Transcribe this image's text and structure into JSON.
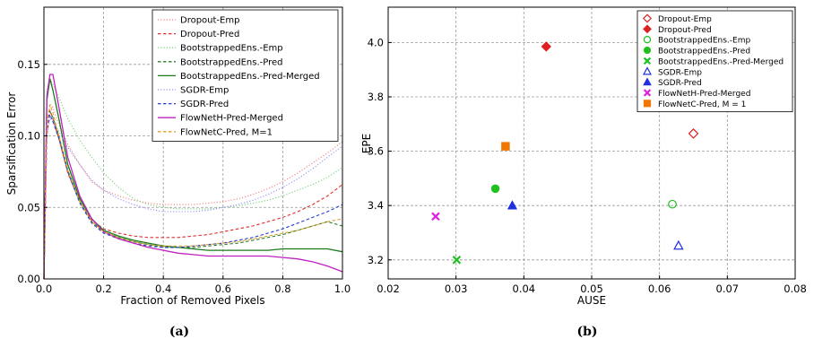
{
  "chart_data": [
    {
      "type": "line",
      "caption": "(a)",
      "xlabel": "Fraction of  Removed Pixels",
      "ylabel": "Sparsification Error",
      "xlim": [
        0,
        1.0
      ],
      "ylim": [
        0,
        0.19
      ],
      "xticks": [
        0.0,
        0.2,
        0.4,
        0.6,
        0.8,
        1.0
      ],
      "xtick_labels": [
        "0.0",
        "0.2",
        "0.4",
        "0.6",
        "0.8",
        "1.0"
      ],
      "yticks": [
        0.0,
        0.05,
        0.1,
        0.15
      ],
      "ytick_labels": [
        "0.00",
        "0.05",
        "0.10",
        "0.15"
      ],
      "grid": true,
      "legend_position": "top-right",
      "x": [
        0,
        0.01,
        0.02,
        0.03,
        0.05,
        0.08,
        0.12,
        0.16,
        0.2,
        0.25,
        0.3,
        0.35,
        0.4,
        0.45,
        0.5,
        0.55,
        0.6,
        0.65,
        0.7,
        0.75,
        0.8,
        0.85,
        0.9,
        0.95,
        1.0
      ],
      "series": [
        {
          "name": "Dropout-Emp",
          "color": "#f08080",
          "dash": "dotted",
          "values": [
            0,
            0.11,
            0.122,
            0.12,
            0.108,
            0.094,
            0.08,
            0.068,
            0.062,
            0.058,
            0.055,
            0.053,
            0.052,
            0.052,
            0.052,
            0.053,
            0.054,
            0.056,
            0.059,
            0.063,
            0.068,
            0.074,
            0.081,
            0.088,
            0.096
          ]
        },
        {
          "name": "Dropout-Pred",
          "color": "#e03030",
          "dash": "dashed",
          "values": [
            0,
            0.1,
            0.118,
            0.112,
            0.098,
            0.074,
            0.054,
            0.041,
            0.035,
            0.032,
            0.03,
            0.029,
            0.029,
            0.029,
            0.03,
            0.031,
            0.033,
            0.035,
            0.037,
            0.04,
            0.043,
            0.047,
            0.052,
            0.058,
            0.066
          ]
        },
        {
          "name": "BootstrappedEns.-Emp",
          "color": "#7ccf7c",
          "dash": "dotted",
          "values": [
            0,
            0.132,
            0.14,
            0.136,
            0.127,
            0.112,
            0.097,
            0.085,
            0.074,
            0.064,
            0.056,
            0.052,
            0.05,
            0.049,
            0.049,
            0.049,
            0.05,
            0.051,
            0.053,
            0.055,
            0.058,
            0.062,
            0.066,
            0.071,
            0.078
          ]
        },
        {
          "name": "BootstrappedEns.-Pred",
          "color": "#2e7d2e",
          "dash": "dashed",
          "values": [
            0,
            0.11,
            0.117,
            0.113,
            0.1,
            0.076,
            0.054,
            0.04,
            0.033,
            0.029,
            0.026,
            0.024,
            0.022,
            0.022,
            0.022,
            0.023,
            0.024,
            0.025,
            0.027,
            0.029,
            0.031,
            0.034,
            0.037,
            0.04,
            0.037
          ]
        },
        {
          "name": "BootstrappedEns.-Pred-Merged",
          "color": "#1a7a1a",
          "dash": "solid",
          "values": [
            0,
            0.125,
            0.14,
            0.132,
            0.112,
            0.08,
            0.056,
            0.042,
            0.034,
            0.03,
            0.027,
            0.025,
            0.023,
            0.022,
            0.021,
            0.02,
            0.02,
            0.02,
            0.02,
            0.02,
            0.021,
            0.021,
            0.021,
            0.021,
            0.019
          ]
        },
        {
          "name": "SGDR-Emp",
          "color": "#8f8ff0",
          "dash": "dotted",
          "values": [
            0,
            0.1,
            0.112,
            0.11,
            0.103,
            0.092,
            0.08,
            0.069,
            0.062,
            0.056,
            0.052,
            0.049,
            0.047,
            0.047,
            0.047,
            0.048,
            0.05,
            0.052,
            0.055,
            0.059,
            0.064,
            0.07,
            0.077,
            0.085,
            0.093
          ]
        },
        {
          "name": "SGDR-Pred",
          "color": "#2a3fd0",
          "dash": "dashed",
          "values": [
            0,
            0.105,
            0.115,
            0.11,
            0.098,
            0.075,
            0.053,
            0.039,
            0.032,
            0.028,
            0.025,
            0.023,
            0.022,
            0.022,
            0.023,
            0.024,
            0.025,
            0.027,
            0.029,
            0.032,
            0.035,
            0.039,
            0.043,
            0.047,
            0.052
          ]
        },
        {
          "name": "FlowNetH-Pred-Merged",
          "color": "#c020c0",
          "dash": "solid",
          "values": [
            0,
            0.128,
            0.143,
            0.143,
            0.12,
            0.085,
            0.058,
            0.042,
            0.033,
            0.028,
            0.025,
            0.022,
            0.02,
            0.018,
            0.017,
            0.016,
            0.016,
            0.016,
            0.016,
            0.016,
            0.015,
            0.014,
            0.012,
            0.009,
            0.005
          ]
        },
        {
          "name": "FlowNetC-Pred, M=1",
          "color": "#e0a030",
          "dash": "dashed",
          "values": [
            0,
            0.108,
            0.122,
            0.116,
            0.1,
            0.076,
            0.054,
            0.04,
            0.033,
            0.029,
            0.026,
            0.024,
            0.023,
            0.023,
            0.023,
            0.024,
            0.025,
            0.026,
            0.028,
            0.03,
            0.032,
            0.034,
            0.037,
            0.04,
            0.042
          ]
        }
      ]
    },
    {
      "type": "scatter",
      "caption": "(b)",
      "xlabel": "AUSE",
      "ylabel": "EPE",
      "xlim": [
        0.02,
        0.08
      ],
      "ylim": [
        3.13,
        4.13
      ],
      "xticks": [
        0.02,
        0.03,
        0.04,
        0.05,
        0.06,
        0.07,
        0.08
      ],
      "xtick_labels": [
        "0.02",
        "0.03",
        "0.04",
        "0.05",
        "0.06",
        "0.07",
        "0.08"
      ],
      "yticks": [
        3.2,
        3.4,
        3.6,
        3.8,
        4.0
      ],
      "ytick_labels": [
        "3.2",
        "3.4",
        "3.6",
        "3.8",
        "4.0"
      ],
      "grid": true,
      "legend_position": "top-right",
      "points": [
        {
          "name": "Dropout-Emp",
          "x": 0.065,
          "y": 3.665,
          "marker": "diamond-open",
          "color": "#e02020"
        },
        {
          "name": "Dropout-Pred",
          "x": 0.0433,
          "y": 3.985,
          "marker": "diamond",
          "color": "#e02020"
        },
        {
          "name": "BootstrappedEns.-Emp",
          "x": 0.0619,
          "y": 3.405,
          "marker": "circle-open",
          "color": "#20c020"
        },
        {
          "name": "BootstrappedEns.-Pred",
          "x": 0.0358,
          "y": 3.462,
          "marker": "circle",
          "color": "#20c020"
        },
        {
          "name": "BootstrappedEns.-Pred-Merged",
          "x": 0.0301,
          "y": 3.2,
          "marker": "x",
          "color": "#20c020"
        },
        {
          "name": "SGDR-Emp",
          "x": 0.0628,
          "y": 3.252,
          "marker": "triangle-open",
          "color": "#2030e0"
        },
        {
          "name": "SGDR-Pred",
          "x": 0.0383,
          "y": 3.4,
          "marker": "triangle",
          "color": "#2030e0"
        },
        {
          "name": "FlowNetH-Pred-Merged",
          "x": 0.027,
          "y": 3.36,
          "marker": "x",
          "color": "#e020e0"
        },
        {
          "name": "FlowNetC-Pred, M = 1",
          "x": 0.0373,
          "y": 3.618,
          "marker": "square",
          "color": "#f07800"
        }
      ]
    }
  ]
}
